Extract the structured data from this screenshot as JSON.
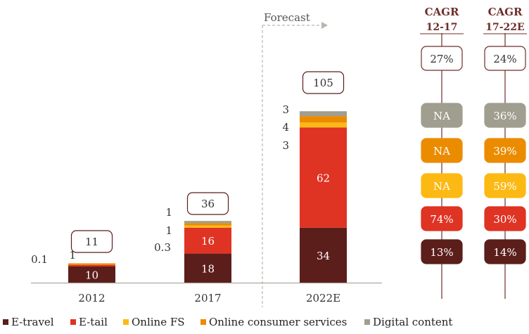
{
  "colors": {
    "E-travel": "#5b1e1b",
    "E-tail": "#df3323",
    "Online FS": "#fdb913",
    "Online consumer services": "#eb8c00",
    "Digital content": "#a09e8f",
    "grey_text": "#666666"
  },
  "chart_data": {
    "type": "bar",
    "stacked": true,
    "categories": [
      "2012",
      "2017",
      "2022E"
    ],
    "series": [
      {
        "name": "E-travel",
        "values": [
          10,
          18,
          34
        ]
      },
      {
        "name": "E-tail",
        "values": [
          1,
          16,
          62
        ]
      },
      {
        "name": "Online FS",
        "values": [
          null,
          0.3,
          3
        ]
      },
      {
        "name": "Online consumer services",
        "values": [
          0.1,
          1,
          4
        ]
      },
      {
        "name": "Digital content",
        "values": [
          null,
          1,
          3
        ]
      }
    ],
    "totals": [
      "11",
      "36",
      "105"
    ],
    "bar_labels": [
      {
        "category": "2012",
        "labels": [
          {
            "series": "E-travel",
            "text": "10",
            "inside": true
          },
          {
            "series": "E-tail",
            "text": "1",
            "inside": false
          },
          {
            "series": "Online consumer services",
            "text": "0.1",
            "inside": false
          }
        ]
      },
      {
        "category": "2017",
        "labels": [
          {
            "series": "E-travel",
            "text": "18",
            "inside": true
          },
          {
            "series": "E-tail",
            "text": "16",
            "inside": true
          },
          {
            "series": "Online FS",
            "text": "0.3",
            "inside": false
          },
          {
            "series": "Online consumer services",
            "text": "1",
            "inside": false
          },
          {
            "series": "Digital content",
            "text": "1",
            "inside": false
          }
        ]
      },
      {
        "category": "2022E",
        "labels": [
          {
            "series": "E-travel",
            "text": "34",
            "inside": true
          },
          {
            "series": "E-tail",
            "text": "62",
            "inside": true
          },
          {
            "series": "Online FS",
            "text": "3",
            "inside": false
          },
          {
            "series": "Online consumer services",
            "text": "4",
            "inside": false
          },
          {
            "series": "Digital content",
            "text": "3",
            "inside": false
          }
        ]
      }
    ],
    "forecast_label": "Forecast",
    "legend": [
      "E-travel",
      "E-tail",
      "Online FS",
      "Online consumer services",
      "Digital content"
    ],
    "legend_position": "bottom",
    "cagr": [
      {
        "header": [
          "CAGR",
          "12-17"
        ],
        "values": [
          {
            "label": "27%",
            "series": "Total"
          },
          {
            "label": "NA",
            "series": "Digital content"
          },
          {
            "label": "NA",
            "series": "Online consumer services"
          },
          {
            "label": "NA",
            "series": "Online FS"
          },
          {
            "label": "74%",
            "series": "E-tail"
          },
          {
            "label": "13%",
            "series": "E-travel"
          }
        ]
      },
      {
        "header": [
          "CAGR",
          "17-22E"
        ],
        "values": [
          {
            "label": "24%",
            "series": "Total"
          },
          {
            "label": "36%",
            "series": "Digital content"
          },
          {
            "label": "39%",
            "series": "Online consumer services"
          },
          {
            "label": "59%",
            "series": "Online FS"
          },
          {
            "label": "30%",
            "series": "E-tail"
          },
          {
            "label": "14%",
            "series": "E-travel"
          }
        ]
      }
    ]
  }
}
